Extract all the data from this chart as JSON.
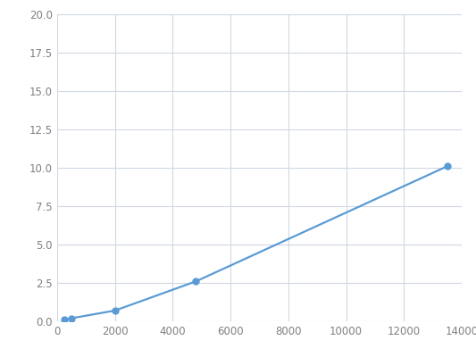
{
  "x": [
    250,
    500,
    2000,
    4800,
    13500
  ],
  "y": [
    0.1,
    0.2,
    0.7,
    2.6,
    10.1
  ],
  "line_color": "#5b9bd5",
  "marker_color": "#5b9bd5",
  "marker_size": 5,
  "xlim": [
    0,
    14000
  ],
  "ylim": [
    0,
    20
  ],
  "xticks": [
    0,
    2000,
    4000,
    6000,
    8000,
    10000,
    12000,
    14000
  ],
  "yticks": [
    0.0,
    2.5,
    5.0,
    7.5,
    10.0,
    12.5,
    15.0,
    17.5,
    20.0
  ],
  "grid_color": "#d0d8e4",
  "background_color": "#ffffff",
  "figure_color": "#ffffff",
  "line_width": 1.6,
  "tick_fontsize": 8.5,
  "tick_color": "#808080"
}
